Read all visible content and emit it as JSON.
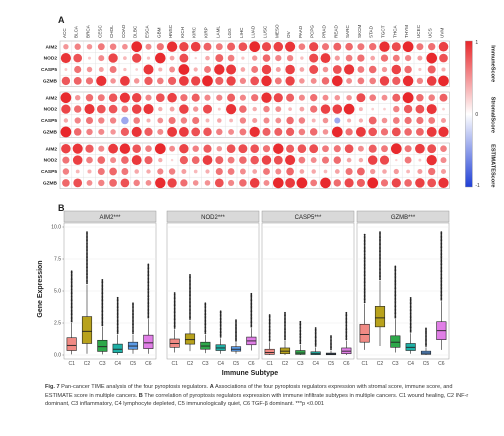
{
  "figure": {
    "panel_a_letter": "A",
    "panel_b_letter": "B"
  },
  "heatmap": {
    "columns": [
      "ACC",
      "BLCA",
      "BRCA",
      "CESC",
      "CHOL",
      "COAD",
      "DLBC",
      "ESCA",
      "GBM",
      "HNSC",
      "KICH",
      "KIRC",
      "KIRP",
      "LAML",
      "LGG",
      "LIHC",
      "LUAD",
      "LUSC",
      "MESO",
      "OV",
      "PAAD",
      "PCPG",
      "PRAD",
      "READ",
      "SARC",
      "SKCM",
      "STAD",
      "TGCT",
      "THCA",
      "THYM",
      "UCEC",
      "UCS",
      "UVM"
    ],
    "blocks": [
      {
        "label": "ImmuneScore",
        "rows": [
          "AIM2",
          "NOD2",
          "CASP5",
          "GZMB"
        ]
      },
      {
        "label": "StromalScore",
        "rows": [
          "AIM2",
          "NOD2",
          "CASP5",
          "GZMB"
        ]
      },
      {
        "label": "ESTIMATEScore",
        "rows": [
          "AIM2",
          "NOD2",
          "CASP5",
          "GZMB"
        ]
      }
    ],
    "colorbar": {
      "max_label": "1",
      "mid_label": "0",
      "min_label": "-1",
      "high_color": "#e8262a",
      "low_color": "#1f3fd6"
    }
  },
  "chart_data": {
    "type": "box",
    "xlabel": "Immune Subtype",
    "ylabel": "Gene Expression",
    "ylim": [
      0,
      10
    ],
    "yticks": [
      "0.0",
      "2.5",
      "5.0",
      "7.5",
      "10.0"
    ],
    "categories": [
      "C1",
      "C2",
      "C3",
      "C4",
      "C5",
      "C6"
    ],
    "colors": [
      "#f08a84",
      "#b8a21c",
      "#2ea84a",
      "#1fb0a6",
      "#5b9be6",
      "#e07ee6"
    ],
    "panels": [
      {
        "title": "AIM2***",
        "boxes": [
          [
            0.05,
            0.35,
            0.75,
            1.35,
            2.5
          ],
          [
            0.1,
            0.9,
            1.85,
            3.0,
            5.5
          ],
          [
            0.05,
            0.28,
            0.65,
            1.15,
            2.2
          ],
          [
            0.02,
            0.18,
            0.45,
            0.85,
            1.6
          ],
          [
            0.1,
            0.45,
            0.7,
            1.0,
            1.6
          ],
          [
            0.1,
            0.5,
            0.95,
            1.55,
            2.8
          ]
        ]
      },
      {
        "title": "NOD2***",
        "boxes": [
          [
            0.2,
            0.6,
            0.9,
            1.25,
            2.0
          ],
          [
            0.3,
            0.85,
            1.2,
            1.65,
            2.7
          ],
          [
            0.15,
            0.45,
            0.7,
            1.0,
            1.6
          ],
          [
            0.1,
            0.35,
            0.55,
            0.8,
            1.3
          ],
          [
            0.1,
            0.3,
            0.45,
            0.65,
            1.0
          ],
          [
            0.35,
            0.8,
            1.1,
            1.4,
            2.1
          ]
        ]
      },
      {
        "title": "CASP5***",
        "boxes": [
          [
            0.0,
            0.05,
            0.2,
            0.45,
            1.0
          ],
          [
            0.0,
            0.1,
            0.3,
            0.55,
            1.1
          ],
          [
            0.0,
            0.05,
            0.15,
            0.35,
            0.8
          ],
          [
            0.0,
            0.03,
            0.1,
            0.25,
            0.6
          ],
          [
            0.0,
            0.02,
            0.08,
            0.15,
            0.35
          ],
          [
            0.0,
            0.1,
            0.3,
            0.55,
            1.1
          ]
        ]
      },
      {
        "title": "GZMB***",
        "boxes": [
          [
            0.4,
            1.0,
            1.6,
            2.4,
            4.0
          ],
          [
            0.7,
            2.2,
            2.9,
            3.8,
            5.8
          ],
          [
            0.2,
            0.6,
            1.0,
            1.5,
            2.8
          ],
          [
            0.1,
            0.35,
            0.6,
            0.9,
            1.7
          ],
          [
            0.0,
            0.05,
            0.15,
            0.3,
            0.6
          ],
          [
            0.4,
            1.2,
            1.9,
            2.6,
            4.2
          ]
        ]
      }
    ]
  },
  "caption": {
    "fig_label": "Fig. 7",
    "title": "Pan-cancer TIME analysis of the four pyroptosis regulators.",
    "a_label": "A",
    "a_text": "Associations of the four pyroptosis regulators expression with stromal score, immune score, and ESTIMATE score in multiple cancers.",
    "b_label": "B",
    "b_text": "The correlation of pyroptosis regulators expression with immune infiltrate subtypes in multiple cancers.",
    "subtypes": "C1 wound healing, C2 INF-r dominant, C3 inflammatory, C4 lymphocyte depleted, C5 immunologically quiet, C6 TGF-β dominant.",
    "sig": "***p <0.001"
  }
}
